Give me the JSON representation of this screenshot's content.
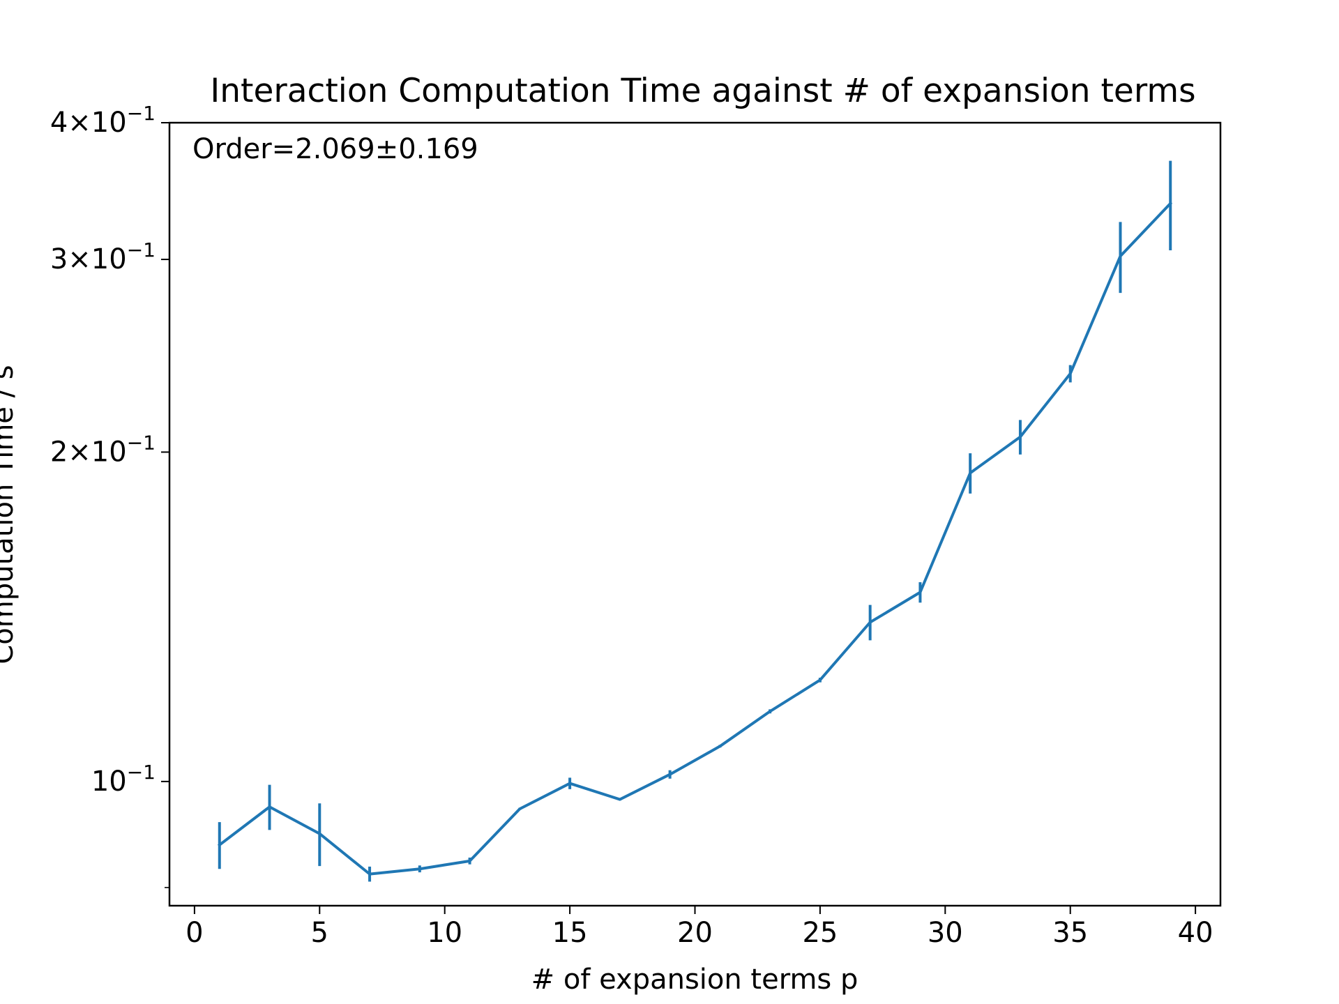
{
  "chart_data": {
    "type": "line",
    "title": "Interaction Computation Time against # of expansion terms",
    "xlabel": "# of expansion terms p",
    "ylabel": "Computation Time / s",
    "yscale": "log",
    "grid": false,
    "xlim": [
      -1,
      41
    ],
    "ylim": [
      0.077,
      0.4
    ],
    "xticks": [
      0,
      5,
      10,
      15,
      20,
      25,
      30,
      35,
      40
    ],
    "xtick_labels": [
      "0",
      "5",
      "10",
      "15",
      "20",
      "25",
      "30",
      "35",
      "40"
    ],
    "yticks": [
      {
        "value": 0.1,
        "mantissa": "",
        "exponent": "−1"
      },
      {
        "value": 0.2,
        "mantissa": "2",
        "exponent": "−1"
      },
      {
        "value": 0.3,
        "mantissa": "3",
        "exponent": "−1"
      },
      {
        "value": 0.4,
        "mantissa": "4",
        "exponent": "−1"
      }
    ],
    "y_minor_ticks": [
      0.08
    ],
    "annotation": "Order=2.069±0.169",
    "color": "#1f77b4",
    "series": [
      {
        "x": [
          1,
          3,
          5,
          7,
          9,
          11,
          13,
          15,
          17,
          19,
          21,
          23,
          25,
          27,
          29,
          31,
          33,
          35,
          37,
          39
        ],
        "y": [
          0.0875,
          0.0948,
          0.0896,
          0.0823,
          0.0832,
          0.0846,
          0.0944,
          0.0996,
          0.0963,
          0.1015,
          0.1077,
          0.1159,
          0.1238,
          0.1398,
          0.1489,
          0.1914,
          0.2065,
          0.2359,
          0.3021,
          0.3375
        ],
        "yerr": [
          0.0043,
          0.0045,
          0.0059,
          0.0013,
          0.0006,
          0.0006,
          0.0002,
          0.0012,
          0.0002,
          0.0009,
          0.0003,
          0.0005,
          0.0006,
          0.0052,
          0.0032,
          0.0081,
          0.0075,
          0.0043,
          0.0225,
          0.0317
        ]
      }
    ]
  }
}
